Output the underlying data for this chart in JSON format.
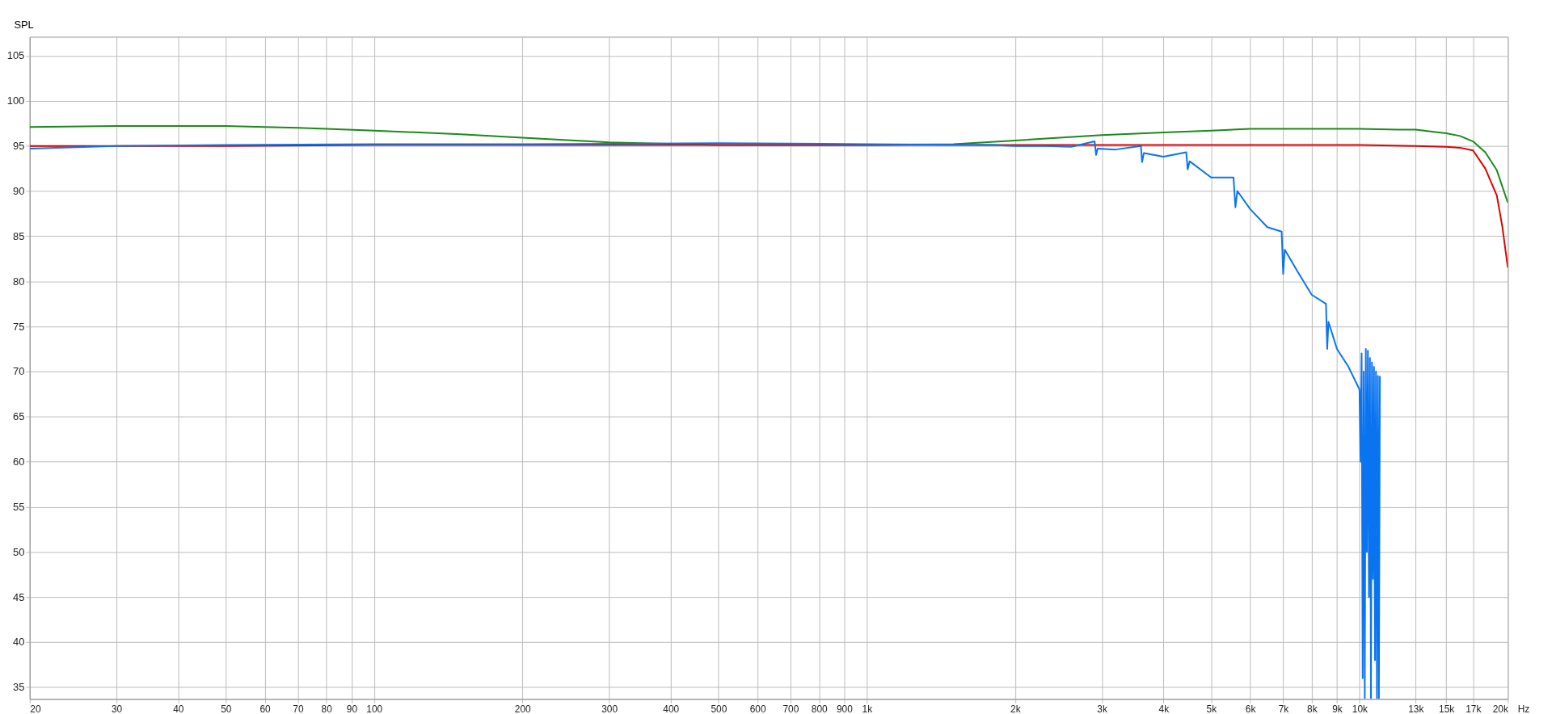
{
  "chart_data": {
    "type": "line",
    "ylabel": "SPL",
    "xlabel": "Hz",
    "log": "x",
    "grid": true,
    "line_style": "solid",
    "marker": "none",
    "xlim": [
      20,
      20000
    ],
    "ylim": [
      33.7,
      107.1
    ],
    "xticks": [
      20,
      30,
      40,
      50,
      60,
      70,
      80,
      90,
      100,
      200,
      300,
      400,
      500,
      600,
      700,
      800,
      900,
      {
        "value": 1000,
        "label": "1k"
      },
      {
        "value": 2000,
        "label": "2k"
      },
      {
        "value": 3000,
        "label": "3k"
      },
      {
        "value": 4000,
        "label": "4k"
      },
      {
        "value": 5000,
        "label": "5k"
      },
      {
        "value": 6000,
        "label": "6k"
      },
      {
        "value": 7000,
        "label": "7k"
      },
      {
        "value": 8000,
        "label": "8k"
      },
      {
        "value": 9000,
        "label": "9k"
      },
      {
        "value": 10000,
        "label": "10k"
      },
      {
        "value": 13000,
        "label": "13k"
      },
      {
        "value": 15000,
        "label": "15k"
      },
      {
        "value": 17000,
        "label": "17k"
      },
      {
        "value": 20000,
        "label": "20k"
      }
    ],
    "yticks": [
      35,
      40,
      45,
      50,
      55,
      60,
      65,
      70,
      75,
      80,
      85,
      90,
      95,
      100,
      105
    ],
    "series": [
      {
        "color": "#1a8a1a",
        "x": [
          20,
          30,
          40,
          50,
          60,
          70,
          80,
          100,
          150,
          200,
          300,
          500,
          1000,
          1500,
          2000,
          3000,
          4000,
          5000,
          6000,
          7000,
          8000,
          10000,
          12000,
          13000,
          15000,
          16000,
          17000,
          18000,
          19000,
          20000
        ],
        "values": [
          97.1,
          97.2,
          97.2,
          97.2,
          97.1,
          97.0,
          96.9,
          96.7,
          96.3,
          95.9,
          95.4,
          95.1,
          95.1,
          95.2,
          95.6,
          96.2,
          96.5,
          96.7,
          96.9,
          96.9,
          96.9,
          96.9,
          96.8,
          96.8,
          96.4,
          96.1,
          95.5,
          94.3,
          92.3,
          88.7
        ]
      },
      {
        "color": "#e00000",
        "x": [
          20,
          50,
          100,
          1000,
          5000,
          10000,
          13000,
          15000,
          16000,
          17000,
          18000,
          19000,
          19500,
          20000
        ],
        "values": [
          95.0,
          95.0,
          95.1,
          95.1,
          95.1,
          95.1,
          95.0,
          94.9,
          94.8,
          94.5,
          92.5,
          89.5,
          86.0,
          81.5
        ]
      },
      {
        "color": "#0a74f0",
        "x": [
          20,
          30,
          50,
          100,
          200,
          500,
          1000,
          1800,
          2000,
          2300,
          2600,
          2900,
          2920,
          2940,
          3200,
          3600,
          3620,
          3650,
          4000,
          4450,
          4480,
          4520,
          5000,
          5550,
          5600,
          5650,
          6000,
          6500,
          6950,
          7000,
          7050,
          7500,
          8000,
          8550,
          8600,
          8650,
          9000,
          9500,
          10000,
          10050,
          10100,
          10150,
          10200,
          10250,
          10300,
          10350,
          10400,
          10450,
          10500,
          10550,
          10600,
          10650,
          10700,
          10750,
          10800,
          10850,
          10900,
          10950,
          11000
        ],
        "values": [
          94.7,
          95.0,
          95.1,
          95.2,
          95.2,
          95.3,
          95.2,
          95.1,
          95.0,
          95.0,
          94.9,
          95.5,
          94.0,
          94.7,
          94.6,
          95.0,
          93.2,
          94.2,
          93.8,
          94.3,
          92.4,
          93.3,
          91.5,
          91.5,
          88.2,
          90.0,
          88.0,
          86.0,
          85.5,
          80.8,
          83.5,
          81.0,
          78.5,
          77.5,
          72.5,
          75.5,
          72.5,
          70.5,
          68.0,
          60.0,
          72.0,
          36.0,
          70.0,
          33.8,
          72.5,
          50.0,
          72.3,
          45.0,
          71.5,
          33.8,
          71.0,
          47.0,
          70.5,
          38.0,
          70.0,
          33.8,
          69.5,
          33.8,
          69.5
        ]
      }
    ]
  }
}
